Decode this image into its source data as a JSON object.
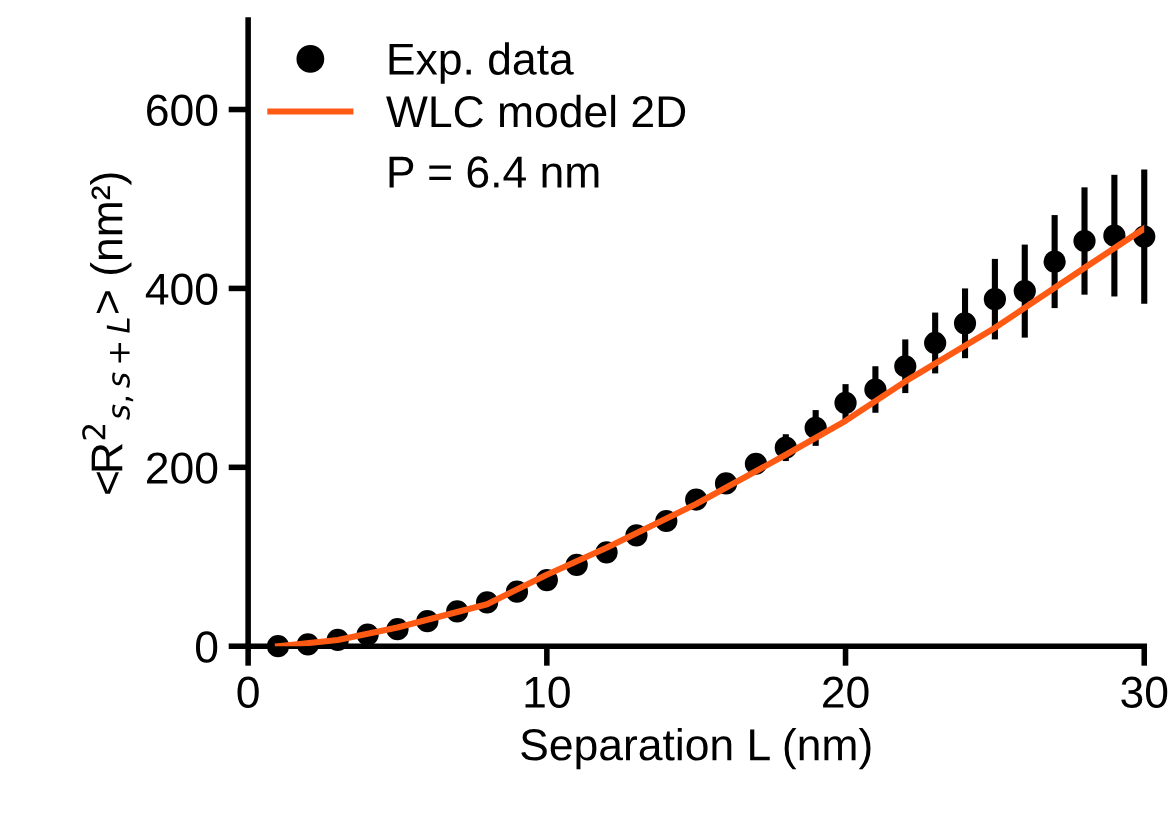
{
  "chart_data": {
    "type": "scatter",
    "xlabel": "Separation L (nm)",
    "ylabel": "<R$^{2}$$_{s,s+L}$> (nm²)",
    "xlim": [
      0,
      30
    ],
    "ylim": [
      0,
      700
    ],
    "xticks": [
      0,
      10,
      20,
      30
    ],
    "yticks": [
      0,
      200,
      400,
      600
    ],
    "grid": false,
    "legend": "top left",
    "marker": "circle",
    "annotations": [
      "P = 6.4 nm"
    ],
    "series": [
      {
        "name": "Exp. data",
        "color": "#000000",
        "x": [
          1,
          2,
          3,
          4,
          5,
          6,
          7,
          8,
          9,
          10,
          11,
          12,
          13,
          14,
          15,
          16,
          17,
          18,
          19,
          20,
          21,
          22,
          23,
          24,
          25,
          26,
          27,
          28,
          29,
          30
        ],
        "values": [
          0,
          2,
          7,
          13,
          19,
          28,
          39,
          49,
          61,
          74,
          91,
          105,
          124,
          140,
          164,
          182,
          204,
          222,
          244,
          272,
          287,
          313,
          339,
          361,
          388,
          397,
          430,
          453,
          459,
          458
        ],
        "errors": [
          null,
          null,
          null,
          null,
          null,
          null,
          null,
          null,
          null,
          null,
          null,
          null,
          null,
          null,
          null,
          8,
          11,
          15,
          20,
          21,
          26,
          30,
          34,
          39,
          45,
          52,
          52,
          60,
          68,
          75
        ]
      },
      {
        "name": "WLC model 2D",
        "type": "line",
        "color": "#ff5a14",
        "marker": "none",
        "line_style": "solid",
        "x": [
          1,
          3,
          5,
          8,
          10,
          12,
          15,
          18,
          20,
          22,
          25,
          28,
          30
        ],
        "values": [
          0,
          7,
          21,
          47,
          80,
          110,
          159,
          214,
          252,
          296,
          356,
          423,
          467
        ]
      }
    ]
  }
}
